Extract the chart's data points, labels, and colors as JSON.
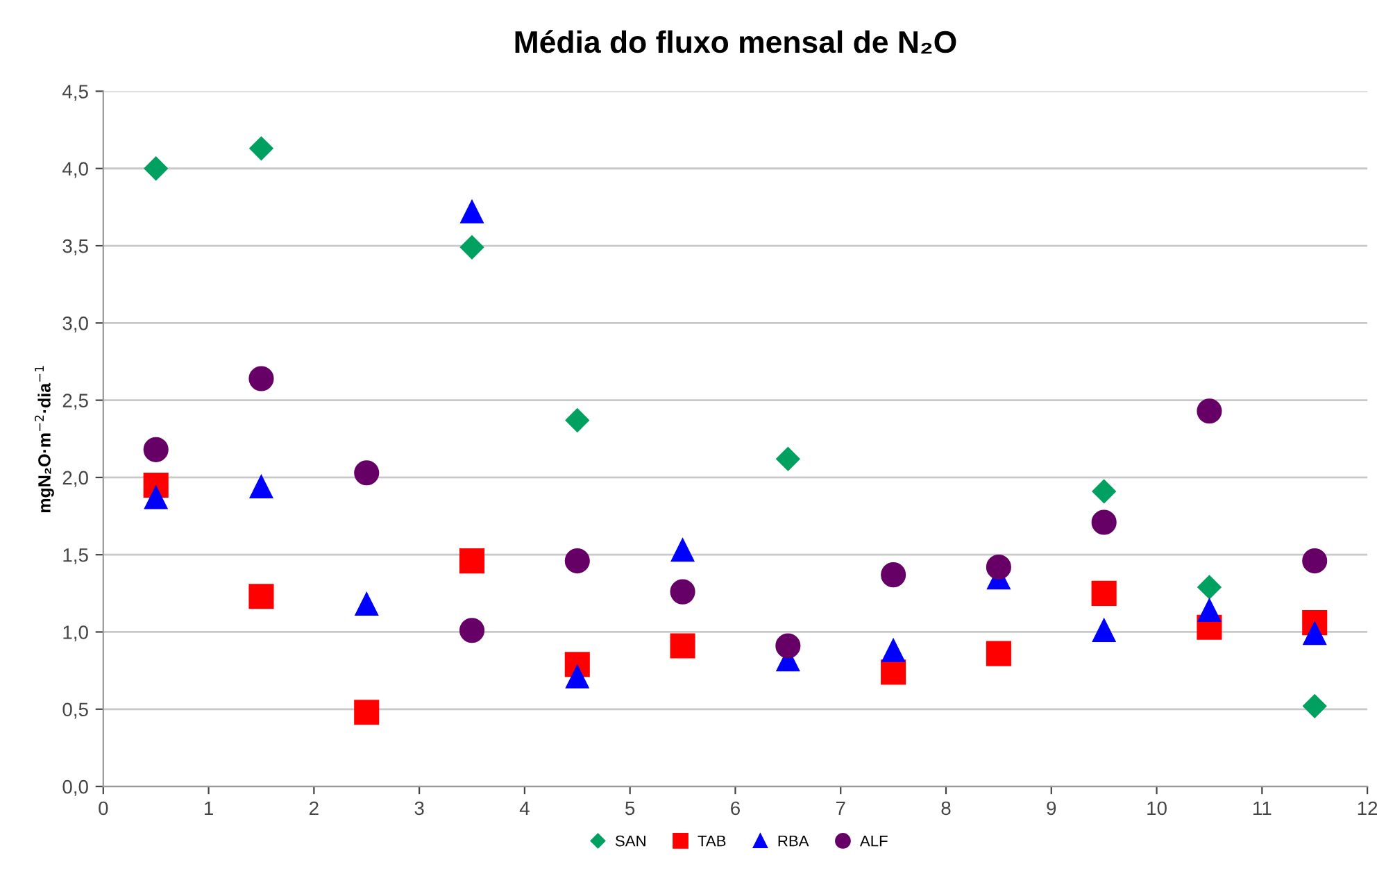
{
  "chart_data": {
    "type": "scatter",
    "title": "Média do fluxo mensal de N₂O",
    "ylabel": "mgN₂O·m$^{−2}$·dia$^{−1}$",
    "x": [
      0.5,
      1.5,
      2.5,
      3.5,
      4.5,
      5.5,
      6.5,
      7.5,
      8.5,
      9.5,
      10.5,
      11.5
    ],
    "series": [
      {
        "name": "SAN",
        "color": "#00a060",
        "marker": "diamond",
        "values": [
          4.0,
          4.13,
          null,
          3.49,
          2.37,
          null,
          2.12,
          null,
          null,
          1.91,
          1.29,
          0.52
        ]
      },
      {
        "name": "TAB",
        "color": "#ff0000",
        "marker": "square",
        "values": [
          1.95,
          1.23,
          0.48,
          1.46,
          0.79,
          0.91,
          null,
          0.74,
          0.86,
          1.25,
          1.03,
          1.06
        ]
      },
      {
        "name": "RBA",
        "color": "#0000ff",
        "marker": "triangle",
        "values": [
          1.87,
          1.94,
          1.18,
          3.72,
          0.71,
          1.53,
          0.82,
          0.88,
          1.35,
          1.01,
          1.14,
          0.99
        ]
      },
      {
        "name": "ALF",
        "color": "#660066",
        "marker": "circle",
        "values": [
          2.18,
          2.64,
          2.03,
          1.01,
          1.46,
          1.26,
          0.91,
          1.37,
          1.42,
          1.71,
          2.43,
          1.46
        ]
      }
    ],
    "xlim": [
      0,
      12
    ],
    "xticks": [
      0,
      1,
      2,
      3,
      4,
      5,
      6,
      7,
      8,
      9,
      10,
      11,
      12
    ],
    "ylim": [
      0,
      4.5
    ],
    "yticks": [
      {
        "value": 0,
        "label": "0,0"
      },
      {
        "value": 0.5,
        "label": "0,5"
      },
      {
        "value": 1,
        "label": "1,0"
      },
      {
        "value": 1.5,
        "label": "1,5"
      },
      {
        "value": 2,
        "label": "2,0"
      },
      {
        "value": 2.5,
        "label": "2,5"
      },
      {
        "value": 3,
        "label": "3,0"
      },
      {
        "value": 3.5,
        "label": "3,5"
      },
      {
        "value": 4,
        "label": "4,0"
      },
      {
        "value": 4.5,
        "label": "4,5"
      }
    ],
    "grid": "y",
    "legend": "bottom"
  }
}
